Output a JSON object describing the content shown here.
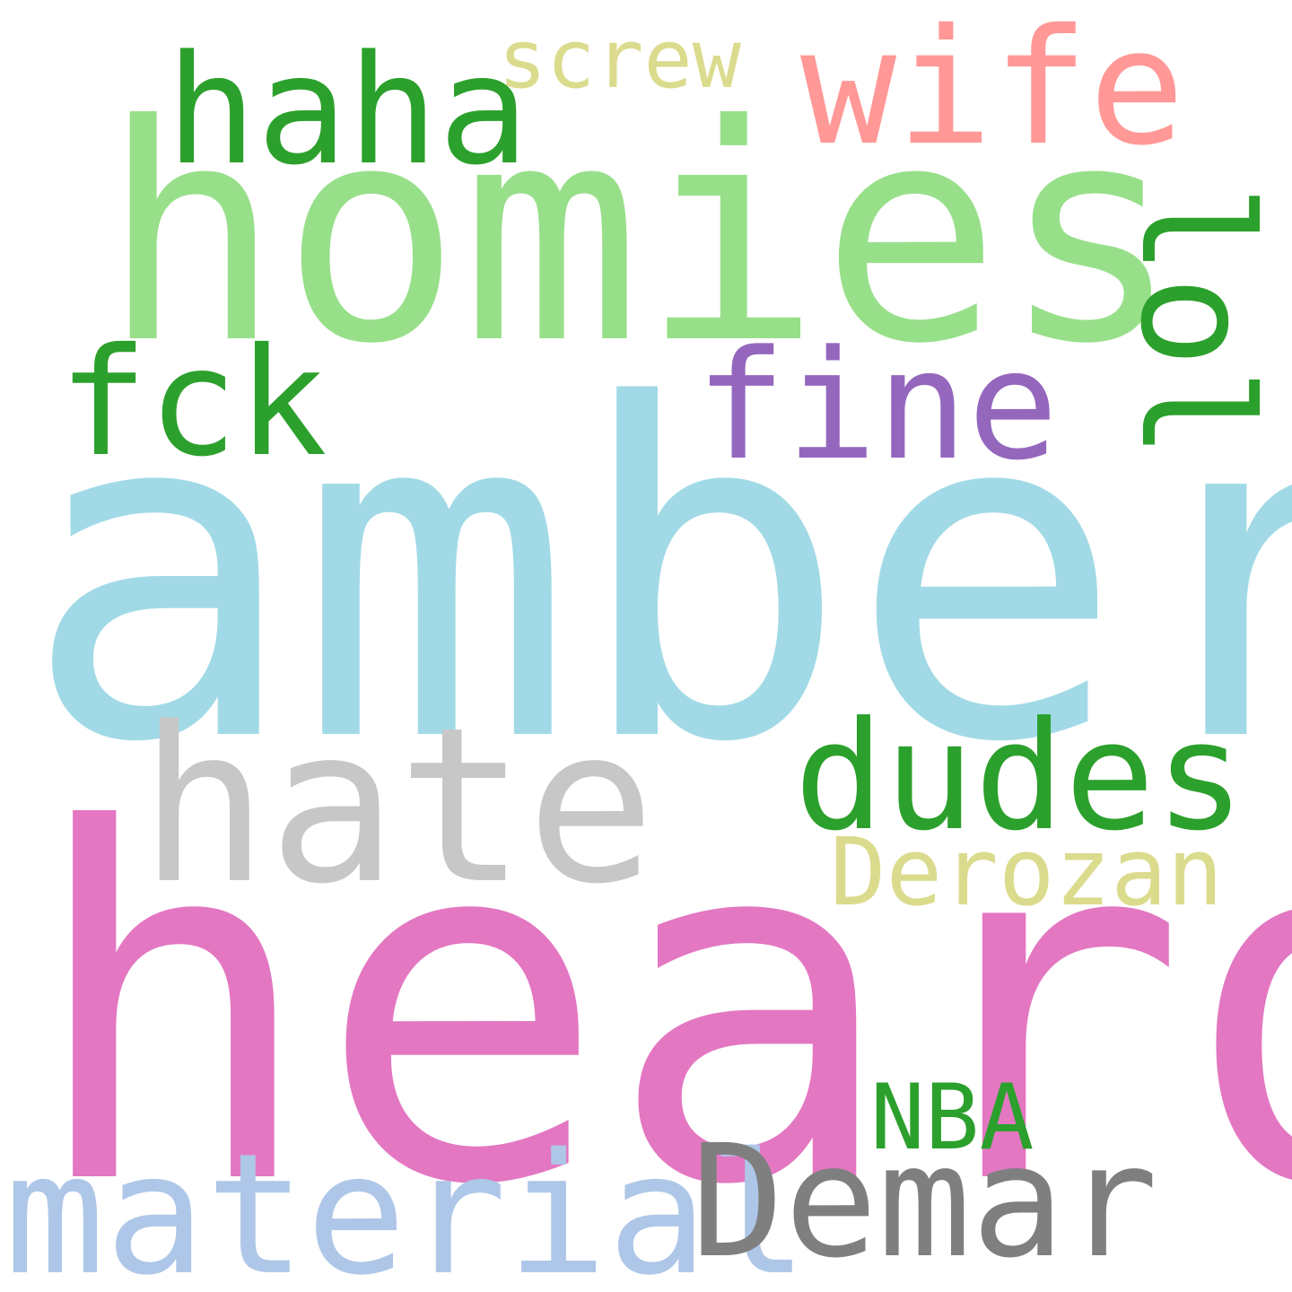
{
  "words": [
    {
      "text": "heard",
      "color": "#e377c2"
    },
    {
      "text": "amber",
      "color": "#a1dae6"
    },
    {
      "text": "homies",
      "color": "#98df8a"
    },
    {
      "text": "hate",
      "color": "#c7c7c7"
    },
    {
      "text": "material",
      "color": "#aec7e8"
    },
    {
      "text": "Demar",
      "color": "#7f7f7f"
    },
    {
      "text": "dudes",
      "color": "#2ca02c"
    },
    {
      "text": "wife",
      "color": "#ff9896"
    },
    {
      "text": "haha",
      "color": "#2ca02c"
    },
    {
      "text": "fine",
      "color": "#9467bd"
    },
    {
      "text": "fck",
      "color": "#2ca02c"
    },
    {
      "text": "lol",
      "color": "#2ca02c"
    },
    {
      "text": "Derozan",
      "color": "#dbdb8d"
    },
    {
      "text": "NBA",
      "color": "#2ca02c"
    },
    {
      "text": "screw",
      "color": "#dbdb8d"
    }
  ]
}
